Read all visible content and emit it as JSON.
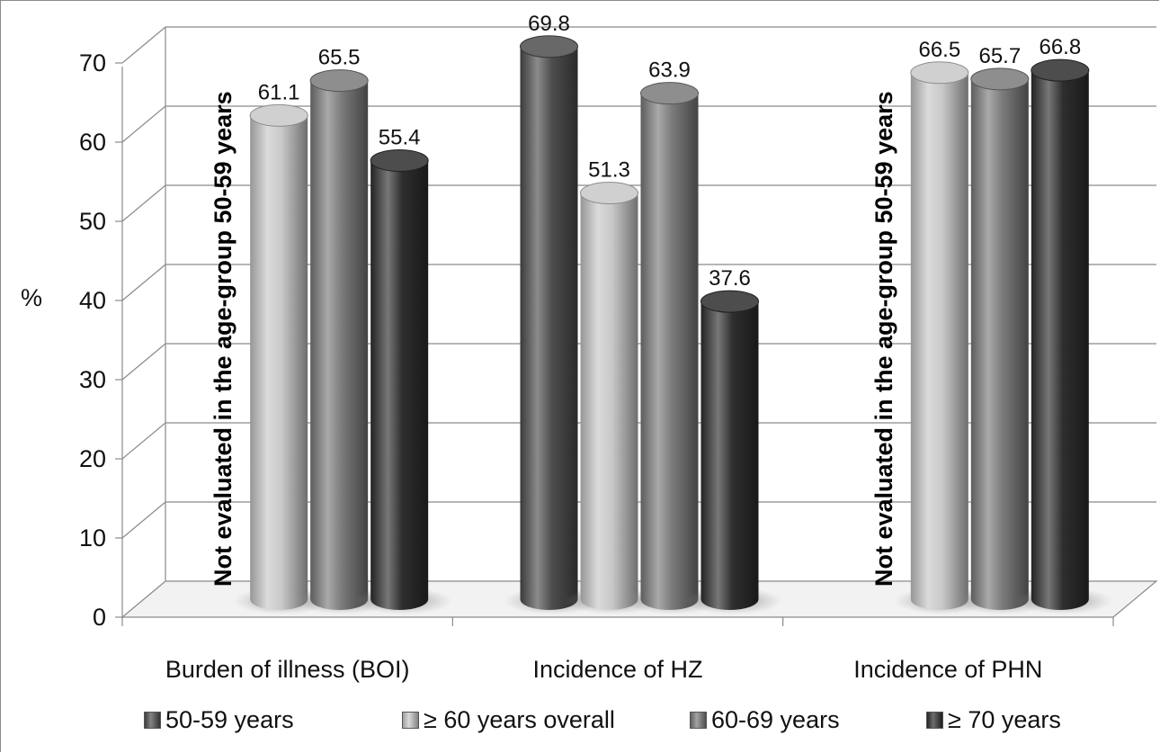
{
  "chart_data": {
    "type": "bar",
    "ylabel": "%",
    "ylim": [
      0,
      70
    ],
    "yticks": [
      0,
      10,
      20,
      30,
      40,
      50,
      60,
      70
    ],
    "categories": [
      "Burden of illness (BOI)",
      "Incidence of HZ",
      "Incidence of PHN"
    ],
    "series": [
      {
        "name": "50-59 years",
        "color": "#4d4d4d",
        "values": [
          null,
          69.8,
          null
        ],
        "labels": [
          "",
          "69.8",
          ""
        ]
      },
      {
        "name": "≥ 60 years overall",
        "color": "#c8c8c8",
        "values": [
          61.1,
          51.3,
          66.5
        ],
        "labels": [
          "61.1",
          "51.3",
          "66.5"
        ]
      },
      {
        "name": "60-69 years",
        "color": "#7a7a7a",
        "values": [
          65.5,
          63.9,
          65.7
        ],
        "labels": [
          "65.5",
          "63.9",
          "65.7"
        ]
      },
      {
        "name": "≥ 70 years",
        "color": "#2e2e2e",
        "values": [
          55.4,
          37.6,
          66.8
        ],
        "labels": [
          "55.4",
          "37.6",
          "66.8"
        ]
      }
    ],
    "annotations": [
      {
        "category": "Burden of illness (BOI)",
        "text": "Not evaluated in the age-group 50-59 years"
      },
      {
        "category": "Incidence of PHN",
        "text": "Not evaluated in the age-group 50-59 years"
      }
    ],
    "grid": true,
    "legend_position": "bottom"
  }
}
